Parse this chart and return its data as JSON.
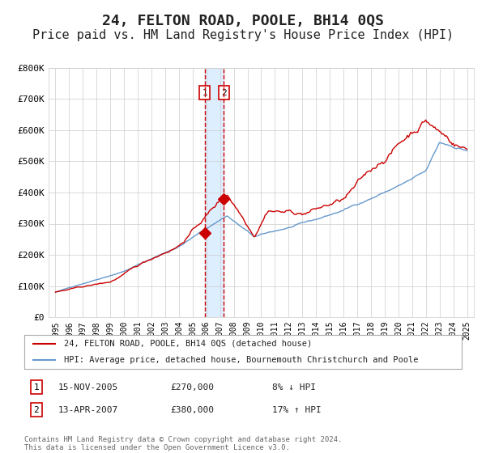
{
  "title": "24, FELTON ROAD, POOLE, BH14 0QS",
  "subtitle": "Price paid vs. HM Land Registry's House Price Index (HPI)",
  "title_fontsize": 13,
  "subtitle_fontsize": 11,
  "background_color": "#ffffff",
  "plot_bg_color": "#ffffff",
  "grid_color": "#cccccc",
  "legend_line1": "24, FELTON ROAD, POOLE, BH14 0QS (detached house)",
  "legend_line2": "HPI: Average price, detached house, Bournemouth Christchurch and Poole",
  "footnote": "Contains HM Land Registry data © Crown copyright and database right 2024.\nThis data is licensed under the Open Government Licence v3.0.",
  "transaction1_date": "15-NOV-2005",
  "transaction1_price": "£270,000",
  "transaction1_hpi": "8% ↓ HPI",
  "transaction1_label": "1",
  "transaction2_date": "13-APR-2007",
  "transaction2_price": "£380,000",
  "transaction2_hpi": "17% ↑ HPI",
  "transaction2_label": "2",
  "hpi_color": "#6699cc",
  "price_color": "#cc0000",
  "marker_color": "#cc0000",
  "dashed_line_color": "#cc0000",
  "shaded_region_color": "#ddeeff",
  "transaction1_x": 2005.88,
  "transaction1_y": 270000,
  "transaction2_x": 2007.28,
  "transaction2_y": 380000,
  "ylim": [
    0,
    800000
  ],
  "xlim": [
    1994.5,
    2025.5
  ],
  "yticks": [
    0,
    100000,
    200000,
    300000,
    400000,
    500000,
    600000,
    700000,
    800000
  ],
  "ytick_labels": [
    "£0",
    "£100K",
    "£200K",
    "£300K",
    "£400K",
    "£500K",
    "£600K",
    "£700K",
    "£800K"
  ]
}
